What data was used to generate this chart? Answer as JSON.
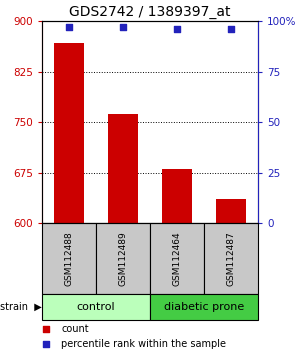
{
  "title": "GDS2742 / 1389397_at",
  "samples": [
    "GSM112488",
    "GSM112489",
    "GSM112464",
    "GSM112487"
  ],
  "counts": [
    868,
    762,
    681,
    636
  ],
  "percentiles": [
    97,
    97,
    96,
    96
  ],
  "ylim_left": [
    600,
    900
  ],
  "yticks_left": [
    600,
    675,
    750,
    825,
    900
  ],
  "ylim_right": [
    0,
    100
  ],
  "yticks_right": [
    0,
    25,
    50,
    75,
    100
  ],
  "yticklabels_right": [
    "0",
    "25",
    "50",
    "75",
    "100%"
  ],
  "bar_color": "#cc0000",
  "percentile_color": "#2222bb",
  "group_control_color": "#bbffbb",
  "group_diabetic_color": "#44cc44",
  "sample_box_color": "#c8c8c8",
  "groups": [
    {
      "label": "control",
      "indices": [
        0,
        1
      ],
      "color": "#bbffbb"
    },
    {
      "label": "diabetic prone",
      "indices": [
        2,
        3
      ],
      "color": "#44cc44"
    }
  ],
  "gridline_ticks": [
    675,
    750,
    825
  ],
  "bar_width": 0.55,
  "legend_count_label": "count",
  "legend_pct_label": "percentile rank within the sample",
  "title_fontsize": 10,
  "tick_fontsize": 7.5,
  "sample_fontsize": 6.5,
  "group_fontsize": 8,
  "legend_fontsize": 7
}
